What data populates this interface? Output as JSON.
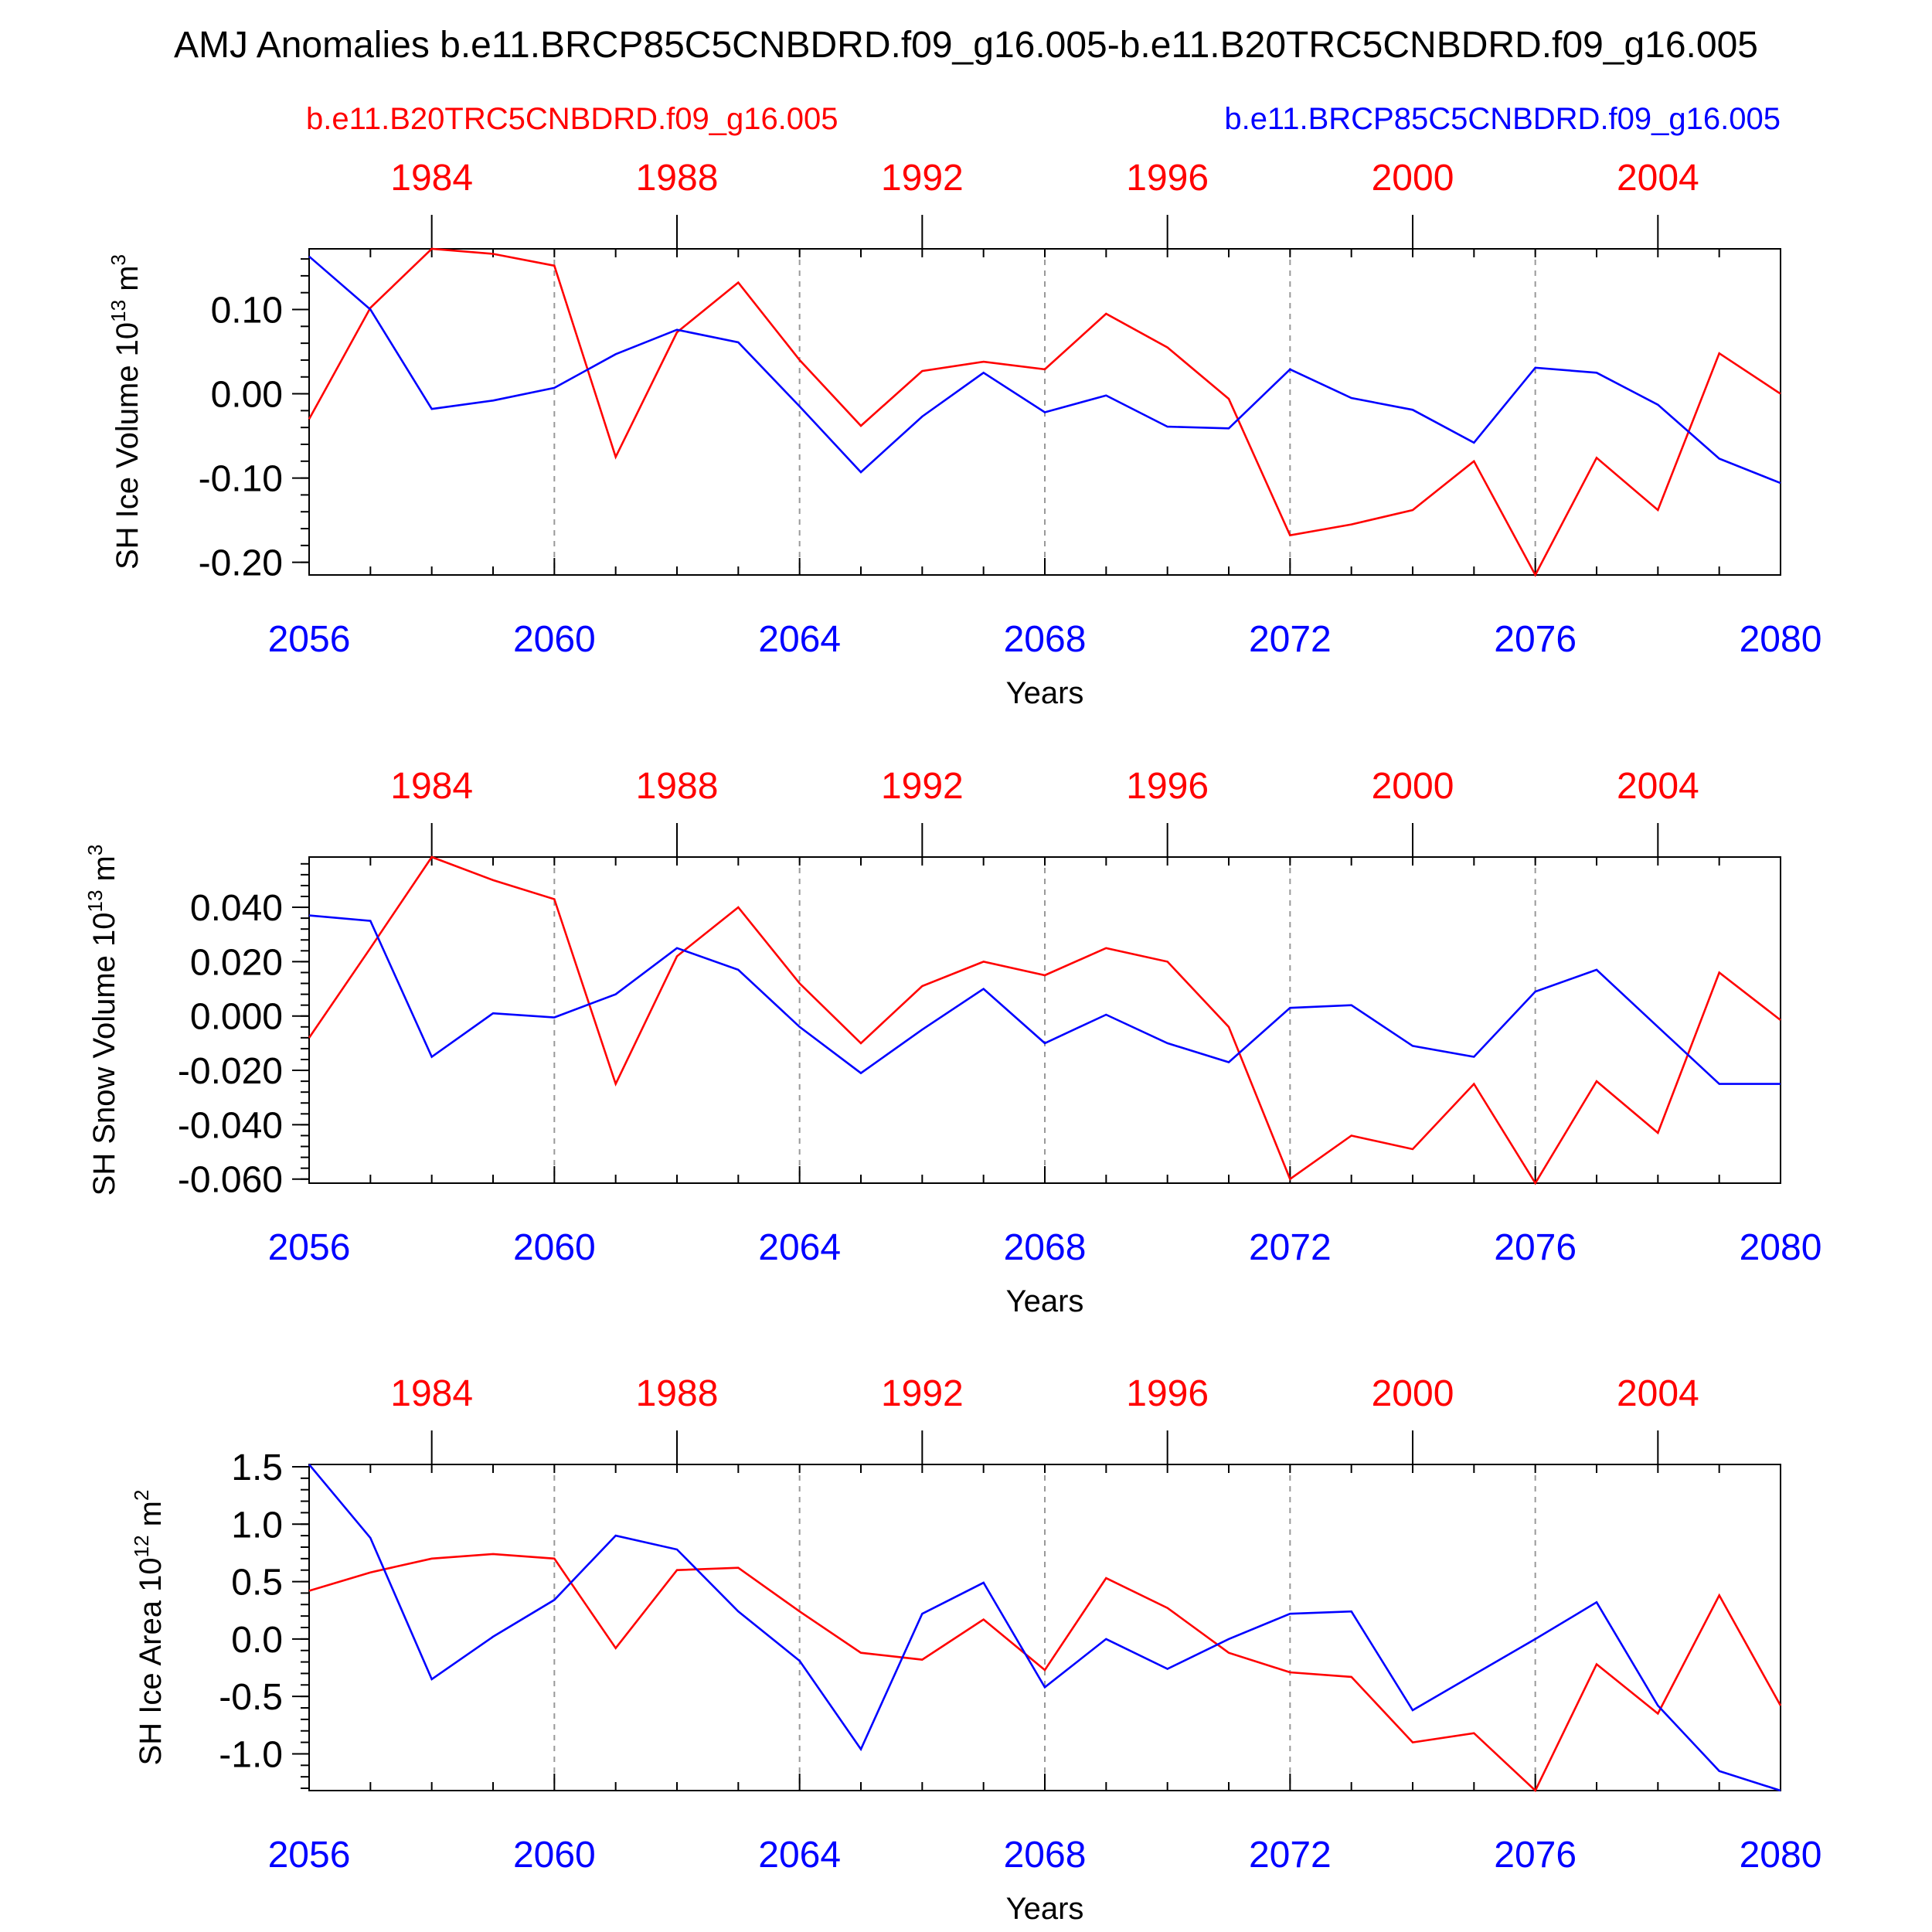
{
  "title": "AMJ Anomalies b.e11.BRCP85C5CNBDRD.f09_g16.005-b.e11.B20TRC5CNBDRD.f09_g16.005",
  "colors": {
    "red": "#ff0000",
    "blue": "#0000ff",
    "grid": "#999999",
    "text": "#000000"
  },
  "chart_data": [
    {
      "type": "line",
      "legend": {
        "left": "b.e11.B20TRC5CNBDRD.f09_g16.005",
        "right": "b.e11.BRCP85C5CNBDRD.f09_g16.005"
      },
      "ylabel_main": "SH Ice Volume 10",
      "ylabel_exp": "13",
      "ylabel_unit": " m",
      "ylabel_unit_exp": "3",
      "xlabel": "Years",
      "ylim": [
        -0.215,
        0.172
      ],
      "yticks": [
        -0.2,
        -0.1,
        0.0,
        0.1
      ],
      "ytick_labels": [
        "-0.20",
        "-0.10",
        "0.00",
        "0.10"
      ],
      "yminor_step": 0.02,
      "xlim": [
        2056,
        2080
      ],
      "xticks_bottom": [
        "2056",
        "2060",
        "2064",
        "2068",
        "2072",
        "2076",
        "2080"
      ],
      "xticks_top": [
        "1984",
        "1988",
        "1992",
        "1996",
        "2000",
        "2004"
      ],
      "years_bottom": [
        2056,
        2057,
        2058,
        2059,
        2060,
        2061,
        2062,
        2063,
        2064,
        2065,
        2066,
        2067,
        2068,
        2069,
        2070,
        2071,
        2072,
        2073,
        2074,
        2075,
        2076,
        2077,
        2078,
        2079,
        2080
      ],
      "series": [
        {
          "name": "b.e11.B20TRC5CNBDRD.f09_g16.005",
          "color": "red",
          "values": [
            -0.03,
            0.102,
            0.172,
            0.166,
            0.152,
            -0.075,
            0.073,
            0.132,
            0.04,
            -0.038,
            0.027,
            0.038,
            0.029,
            0.095,
            0.055,
            -0.006,
            -0.168,
            -0.155,
            -0.138,
            -0.08,
            -0.215,
            -0.076,
            -0.138,
            0.048,
            0.0
          ]
        },
        {
          "name": "b.e11.BRCP85C5CNBDRD.f09_g16.005",
          "color": "blue",
          "values": [
            0.163,
            0.1,
            -0.018,
            -0.008,
            0.007,
            0.047,
            0.076,
            0.061,
            -0.015,
            -0.093,
            -0.027,
            0.025,
            -0.022,
            -0.002,
            -0.039,
            -0.041,
            0.029,
            -0.005,
            -0.019,
            -0.058,
            0.031,
            0.025,
            -0.013,
            -0.077,
            -0.106
          ]
        }
      ]
    },
    {
      "type": "line",
      "ylabel_main": "SH Snow Volume 10",
      "ylabel_exp": "13",
      "ylabel_unit": " m",
      "ylabel_unit_exp": "3",
      "xlabel": "Years",
      "ylim": [
        -0.0615,
        0.0585
      ],
      "yticks": [
        -0.06,
        -0.04,
        -0.02,
        0.0,
        0.02,
        0.04
      ],
      "ytick_labels": [
        "-0.060",
        "-0.040",
        "-0.020",
        "0.000",
        "0.020",
        "0.040"
      ],
      "yminor_step": 0.004,
      "xlim": [
        2056,
        2080
      ],
      "xticks_bottom": [
        "2056",
        "2060",
        "2064",
        "2068",
        "2072",
        "2076",
        "2080"
      ],
      "xticks_top": [
        "1984",
        "1988",
        "1992",
        "1996",
        "2000",
        "2004"
      ],
      "years_bottom": [
        2056,
        2057,
        2058,
        2059,
        2060,
        2061,
        2062,
        2063,
        2064,
        2065,
        2066,
        2067,
        2068,
        2069,
        2070,
        2071,
        2072,
        2073,
        2074,
        2075,
        2076,
        2077,
        2078,
        2079,
        2080
      ],
      "series": [
        {
          "name": "b.e11.B20TRC5CNBDRD.f09_g16.005",
          "color": "red",
          "values": [
            -0.008,
            0.025,
            0.0585,
            0.05,
            0.043,
            -0.025,
            0.022,
            0.04,
            0.012,
            -0.01,
            0.011,
            0.02,
            0.015,
            0.025,
            0.02,
            -0.004,
            -0.06,
            -0.044,
            -0.049,
            -0.025,
            -0.0615,
            -0.024,
            -0.043,
            0.016,
            -0.0015
          ]
        },
        {
          "name": "b.e11.BRCP85C5CNBDRD.f09_g16.005",
          "color": "blue",
          "values": [
            0.037,
            0.035,
            -0.015,
            0.001,
            -0.0005,
            0.008,
            0.025,
            0.017,
            -0.004,
            -0.021,
            -0.005,
            0.01,
            -0.01,
            0.0005,
            -0.01,
            -0.017,
            0.003,
            0.004,
            -0.011,
            -0.015,
            0.009,
            0.017,
            -0.004,
            -0.025,
            -0.025
          ]
        }
      ]
    },
    {
      "type": "line",
      "ylabel_main": "SH Ice Area 10",
      "ylabel_exp": "12",
      "ylabel_unit": " m",
      "ylabel_unit_exp": "2",
      "xlabel": "Years",
      "ylim": [
        -1.32,
        1.52
      ],
      "yticks": [
        -1.0,
        -0.5,
        0.0,
        0.5,
        1.0,
        1.5
      ],
      "ytick_labels": [
        "-1.0",
        "-0.5",
        "0.0",
        "0.5",
        "1.0",
        "1.5"
      ],
      "yminor_step": 0.1,
      "xlim": [
        2056,
        2080
      ],
      "xticks_bottom": [
        "2056",
        "2060",
        "2064",
        "2068",
        "2072",
        "2076",
        "2080"
      ],
      "xticks_top": [
        "1984",
        "1988",
        "1992",
        "1996",
        "2000",
        "2004"
      ],
      "years_bottom": [
        2056,
        2057,
        2058,
        2059,
        2060,
        2061,
        2062,
        2063,
        2064,
        2065,
        2066,
        2067,
        2068,
        2069,
        2070,
        2071,
        2072,
        2073,
        2074,
        2075,
        2076,
        2077,
        2078,
        2079,
        2080
      ],
      "series": [
        {
          "name": "b.e11.B20TRC5CNBDRD.f09_g16.005",
          "color": "red",
          "values": [
            0.42,
            0.58,
            0.7,
            0.74,
            0.7,
            -0.08,
            0.6,
            0.62,
            0.24,
            -0.12,
            -0.18,
            0.17,
            -0.27,
            0.53,
            0.27,
            -0.12,
            -0.29,
            -0.33,
            -0.9,
            -0.82,
            -1.32,
            -0.22,
            -0.65,
            0.38,
            -0.58
          ]
        },
        {
          "name": "b.e11.BRCP85C5CNBDRD.f09_g16.005",
          "color": "blue",
          "values": [
            1.52,
            0.88,
            -0.35,
            0.02,
            0.34,
            0.9,
            0.78,
            0.24,
            -0.19,
            -0.96,
            0.22,
            0.49,
            -0.42,
            0.0,
            -0.26,
            0.0,
            0.22,
            0.24,
            -0.62,
            -0.31,
            0.0,
            0.32,
            -0.58,
            -1.15,
            -1.32
          ]
        }
      ]
    }
  ]
}
